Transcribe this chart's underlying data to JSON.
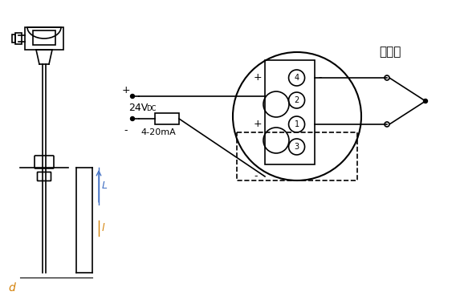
{
  "bg_color": "#ffffff",
  "line_color": "#000000",
  "dim_color": "#4472c4",
  "orange_color": "#d4820a",
  "title_text": "热电偶",
  "label_24v": "24V",
  "label_dc": "DC",
  "label_4_20": "4-20mA",
  "label_plus_top": "+",
  "label_minus_top": "-",
  "label_plus_bot": "+",
  "label_minus_bot": "-",
  "label_L": "L",
  "label_l": "l",
  "label_d": "d",
  "terminal_labels": [
    "4",
    "2",
    "1",
    "3"
  ],
  "terminal_plus_minus": [
    "-",
    "",
    "+",
    ""
  ],
  "figsize": [
    5.68,
    3.84
  ],
  "dpi": 100
}
